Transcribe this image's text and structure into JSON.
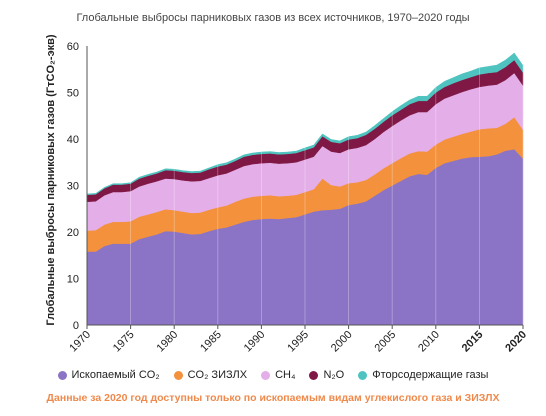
{
  "chart_data": {
    "type": "area",
    "title": "Глобальные выбросы парниковых газов из всех источников, 1970–2020 годы",
    "ylabel": "Глобальные выбросы парниковых газов (ГтCO₂-экв)",
    "xlabel": "",
    "ylim": [
      0,
      60
    ],
    "yticks": [
      0,
      10,
      20,
      30,
      40,
      50,
      60
    ],
    "xlim": [
      1970,
      2020
    ],
    "xticks": [
      {
        "value": 1970,
        "label": "1970",
        "bold": false,
        "color": "#222222"
      },
      {
        "value": 1975,
        "label": "1975",
        "bold": false,
        "color": "#222222"
      },
      {
        "value": 1980,
        "label": "1980",
        "bold": false,
        "color": "#222222"
      },
      {
        "value": 1985,
        "label": "1985",
        "bold": false,
        "color": "#222222"
      },
      {
        "value": 1990,
        "label": "1990",
        "bold": false,
        "color": "#222222"
      },
      {
        "value": 1995,
        "label": "1995",
        "bold": false,
        "color": "#222222"
      },
      {
        "value": 2000,
        "label": "2000",
        "bold": false,
        "color": "#222222"
      },
      {
        "value": 2005,
        "label": "2005",
        "bold": false,
        "color": "#222222"
      },
      {
        "value": 2010,
        "label": "2010",
        "bold": false,
        "color": "#222222"
      },
      {
        "value": 2015,
        "label": "2015",
        "bold": true,
        "color": "#222222"
      },
      {
        "value": 2020,
        "label": "2020",
        "bold": true,
        "color": "#ef8a4c"
      }
    ],
    "stacked": true,
    "grid": "vertical lines at x ticks",
    "legend_position": "bottom",
    "x": [
      1970,
      1971,
      1972,
      1973,
      1974,
      1975,
      1976,
      1977,
      1978,
      1979,
      1980,
      1981,
      1982,
      1983,
      1984,
      1985,
      1986,
      1987,
      1988,
      1989,
      1990,
      1991,
      1992,
      1993,
      1994,
      1995,
      1996,
      1997,
      1998,
      1999,
      2000,
      2001,
      2002,
      2003,
      2004,
      2005,
      2006,
      2007,
      2008,
      2009,
      2010,
      2011,
      2012,
      2013,
      2014,
      2015,
      2016,
      2017,
      2018,
      2019,
      2020
    ],
    "series": [
      {
        "name": "Ископаемый CO₂",
        "color": "#8b74c6",
        "values": [
          15.8,
          15.8,
          17.0,
          17.5,
          17.5,
          17.5,
          18.5,
          19.0,
          19.5,
          20.2,
          20.1,
          19.8,
          19.5,
          19.6,
          20.2,
          20.7,
          21.0,
          21.6,
          22.2,
          22.6,
          22.8,
          22.9,
          22.8,
          23.0,
          23.2,
          23.8,
          24.4,
          24.7,
          24.8,
          25.0,
          25.8,
          26.1,
          26.6,
          27.8,
          29.0,
          30.0,
          31.0,
          32.0,
          32.5,
          32.3,
          33.8,
          34.8,
          35.3,
          35.8,
          36.1,
          36.2,
          36.3,
          36.7,
          37.5,
          37.8,
          35.8
        ]
      },
      {
        "name": "CO₂ ЗИЗЛХ",
        "color": "#f3913d",
        "values": [
          4.5,
          4.6,
          4.6,
          4.7,
          4.7,
          4.8,
          4.8,
          4.8,
          4.8,
          4.7,
          4.6,
          4.6,
          4.6,
          4.6,
          4.6,
          4.6,
          4.7,
          4.9,
          5.0,
          5.0,
          5.0,
          5.0,
          4.9,
          4.8,
          4.8,
          4.8,
          4.8,
          6.8,
          5.3,
          4.8,
          4.7,
          4.6,
          4.6,
          4.6,
          4.7,
          4.8,
          4.9,
          4.9,
          4.9,
          5.0,
          5.0,
          5.1,
          5.2,
          5.3,
          5.5,
          5.9,
          6.0,
          5.7,
          5.8,
          6.9,
          6.2
        ]
      },
      {
        "name": "CH₄",
        "color": "#e4aee8",
        "values": [
          6.2,
          6.2,
          6.3,
          6.4,
          6.4,
          6.5,
          6.5,
          6.6,
          6.6,
          6.6,
          6.7,
          6.7,
          6.8,
          6.8,
          6.8,
          6.9,
          6.9,
          6.9,
          7.0,
          7.0,
          7.0,
          7.0,
          7.0,
          7.0,
          7.0,
          7.0,
          7.0,
          7.0,
          7.2,
          7.2,
          7.3,
          7.4,
          7.5,
          7.6,
          7.8,
          8.0,
          8.1,
          8.2,
          8.4,
          8.5,
          8.7,
          8.8,
          8.9,
          9.0,
          9.1,
          9.1,
          9.2,
          9.3,
          9.4,
          9.5,
          9.5
        ]
      },
      {
        "name": "N₂O",
        "color": "#7f1845",
        "values": [
          1.5,
          1.5,
          1.5,
          1.6,
          1.6,
          1.6,
          1.7,
          1.7,
          1.7,
          1.8,
          1.8,
          1.8,
          1.8,
          1.8,
          1.9,
          1.9,
          1.9,
          1.9,
          2.0,
          2.0,
          2.0,
          2.0,
          2.0,
          2.0,
          2.0,
          2.0,
          2.0,
          2.1,
          2.1,
          2.1,
          2.1,
          2.1,
          2.2,
          2.2,
          2.2,
          2.3,
          2.3,
          2.4,
          2.4,
          2.4,
          2.5,
          2.5,
          2.6,
          2.6,
          2.6,
          2.7,
          2.7,
          2.7,
          2.8,
          2.8,
          2.8
        ]
      },
      {
        "name": "Фторсодержащие газы",
        "color": "#4fc3bf",
        "values": [
          0.2,
          0.2,
          0.2,
          0.2,
          0.2,
          0.2,
          0.3,
          0.3,
          0.3,
          0.3,
          0.3,
          0.3,
          0.3,
          0.3,
          0.3,
          0.4,
          0.4,
          0.4,
          0.4,
          0.4,
          0.4,
          0.4,
          0.4,
          0.4,
          0.4,
          0.5,
          0.5,
          0.5,
          0.5,
          0.5,
          0.6,
          0.6,
          0.6,
          0.7,
          0.7,
          0.8,
          0.9,
          0.9,
          1.0,
          1.0,
          1.1,
          1.2,
          1.2,
          1.3,
          1.3,
          1.4,
          1.4,
          1.5,
          1.5,
          1.5,
          1.5
        ]
      }
    ],
    "footnote": "Данные за 2020 год доступны только по ископаемым видам углекислого газа и ЗИЗЛХ"
  }
}
